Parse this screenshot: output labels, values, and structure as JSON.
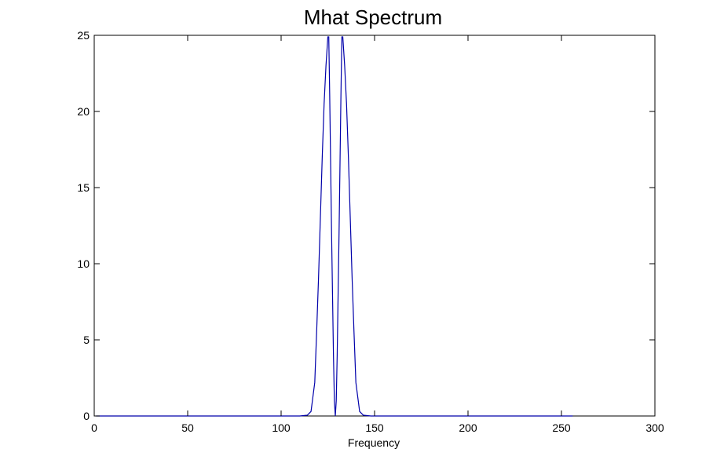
{
  "chart_data": {
    "type": "line",
    "title": "Mhat Spectrum",
    "xlabel": "Frequency",
    "ylabel": "",
    "xlim": [
      0,
      300
    ],
    "ylim": [
      0,
      25
    ],
    "xticks": [
      0,
      50,
      100,
      150,
      200,
      250,
      300
    ],
    "yticks": [
      0,
      5,
      10,
      15,
      20,
      25
    ],
    "grid": false,
    "line_color": "#0000aa",
    "series": [
      {
        "x": [
          1,
          50,
          100,
          110,
          114,
          116,
          118,
          119,
          120,
          121,
          122,
          123,
          124,
          125,
          125.5,
          126,
          127,
          128,
          128.5,
          129,
          129.5,
          130,
          131,
          132,
          132.5,
          133,
          134,
          135,
          136,
          137,
          138,
          139,
          140,
          142,
          144,
          148,
          160,
          200,
          256
        ],
        "y": [
          0,
          0,
          0,
          0,
          0.05,
          0.3,
          2.2,
          5.5,
          9,
          13,
          17,
          20.5,
          23,
          24.9,
          24.9,
          21,
          12,
          4,
          1,
          0,
          1,
          4,
          12,
          21,
          24.9,
          24.9,
          23,
          20.5,
          17,
          13,
          9,
          5.5,
          2.2,
          0.3,
          0.05,
          0,
          0,
          0,
          0
        ]
      }
    ]
  }
}
